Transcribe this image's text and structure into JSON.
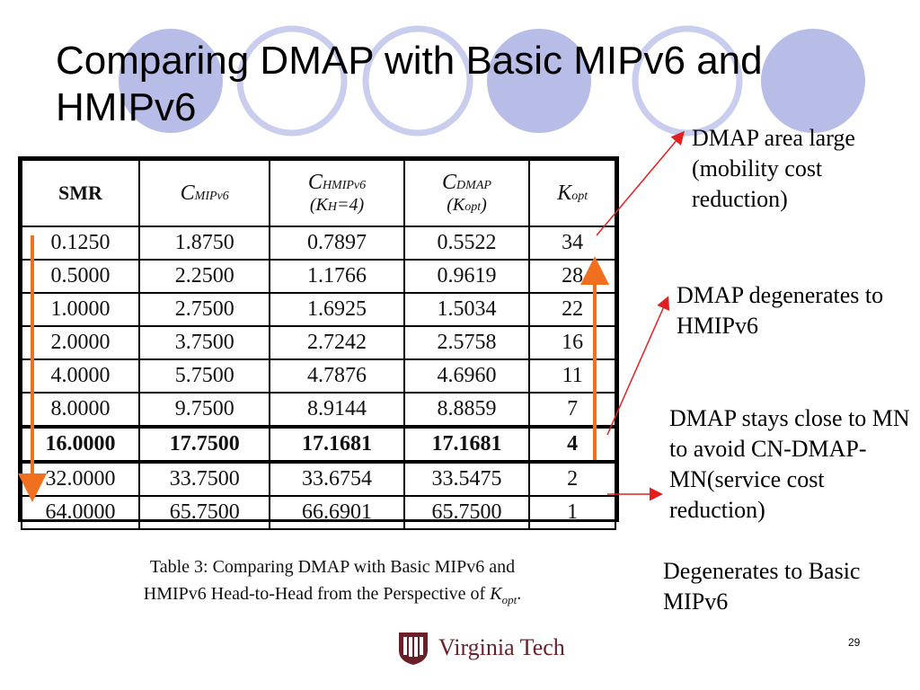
{
  "title": "Comparing DMAP with Basic MIPv6 and HMIPv6",
  "theme": {
    "circle_fill": "#b8bde8",
    "circle_stroke": "#c9cdee",
    "arrow_red": "#e02020",
    "arrow_orange": "#f07020"
  },
  "table": {
    "headers": {
      "smr": "SMR",
      "mip_main": "C",
      "mip_sub": "MIPv6",
      "hmip_main": "C",
      "hmip_sub": "HMIPv6",
      "hmip_second": "(K",
      "hmip_second_sub": "H",
      "hmip_second_tail": "=4)",
      "dmap_main": "C",
      "dmap_sub": "DMAP",
      "dmap_second": "(K",
      "dmap_second_sub": "opt",
      "dmap_second_tail": ")",
      "k_main": "K",
      "k_sub": "opt"
    },
    "rows": [
      [
        "0.1250",
        "1.8750",
        "0.7897",
        "0.5522",
        "34"
      ],
      [
        "0.5000",
        "2.2500",
        "1.1766",
        "0.9619",
        "28"
      ],
      [
        "1.0000",
        "2.7500",
        "1.6925",
        "1.5034",
        "22"
      ],
      [
        "2.0000",
        "3.7500",
        "2.7242",
        "2.5758",
        "16"
      ],
      [
        "4.0000",
        "5.7500",
        "4.7876",
        "4.6960",
        "11"
      ],
      [
        "8.0000",
        "9.7500",
        "8.9144",
        "8.8859",
        "7"
      ],
      [
        "16.0000",
        "17.7500",
        "17.1681",
        "17.1681",
        "4"
      ],
      [
        "32.0000",
        "33.7500",
        "33.6754",
        "33.5475",
        "2"
      ],
      [
        "64.0000",
        "65.7500",
        "66.6901",
        "65.7500",
        "1"
      ]
    ]
  },
  "caption": {
    "line1": "Table 3: Comparing DMAP with Basic MIPv6 and",
    "line2_prefix": "HMIPv6 Head-to-Head from the Perspective of ",
    "line2_k": "K",
    "line2_sub": "opt",
    "line2_tail": "."
  },
  "notes": {
    "note1": "DMAP area large (mobility cost reduction)",
    "note2": "DMAP degenerates to HMIPv6",
    "note3": "DMAP stays close to MN to avoid CN-DMAP-MN(service cost reduction)",
    "note4": "Degenerates to Basic MIPv6"
  },
  "logo": {
    "text": "Virginia Tech",
    "icon": "virginia-tech-seal-icon"
  },
  "page_number": "29"
}
